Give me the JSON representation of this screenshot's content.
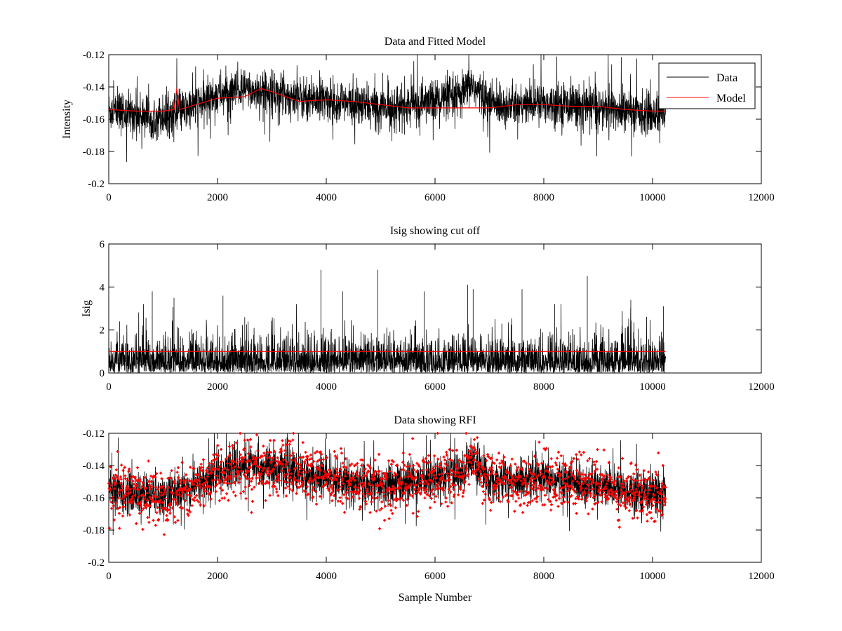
{
  "colors": {
    "data": "#000000",
    "model": "#ff0000",
    "cutoff": "#ff0000",
    "rfi": "#ff0000"
  },
  "chart_data": [
    {
      "type": "line",
      "title": "Data and Fitted Model",
      "xlabel": "",
      "ylabel": "Intensity",
      "xlim": [
        0,
        12000
      ],
      "ylim": [
        -0.2,
        -0.12
      ],
      "xticks": [
        0,
        2000,
        4000,
        6000,
        8000,
        10000,
        12000
      ],
      "yticks": [
        -0.2,
        -0.18,
        -0.16,
        -0.14,
        -0.12
      ],
      "xtick_labels": [
        "0",
        "2000",
        "4000",
        "6000",
        "8000",
        "10000",
        "12000"
      ],
      "ytick_labels": [
        "-0.2",
        "-0.18",
        "-0.16",
        "-0.14",
        "-0.12"
      ],
      "legend": {
        "position": "top-right",
        "entries": [
          "Data",
          "Model"
        ]
      },
      "series": [
        {
          "name": "Data",
          "color": "#000000",
          "style": "noisy-line",
          "x": [
            0,
            500,
            1000,
            1250,
            1500,
            2000,
            2500,
            3000,
            3500,
            4000,
            4500,
            5000,
            5500,
            6000,
            6500,
            6650,
            7000,
            7500,
            8000,
            8500,
            9000,
            9500,
            10000,
            10240
          ],
          "y": [
            -0.155,
            -0.157,
            -0.158,
            -0.157,
            -0.153,
            -0.145,
            -0.142,
            -0.143,
            -0.147,
            -0.148,
            -0.151,
            -0.153,
            -0.152,
            -0.148,
            -0.146,
            -0.138,
            -0.15,
            -0.152,
            -0.15,
            -0.151,
            -0.153,
            -0.155,
            -0.157,
            -0.156
          ]
        },
        {
          "name": "Model",
          "color": "#ff0000",
          "style": "line",
          "x": [
            0,
            500,
            1000,
            1200,
            1250,
            1300,
            1500,
            2000,
            2500,
            2800,
            3000,
            3500,
            4000,
            4500,
            5000,
            5500,
            6000,
            7000,
            7500,
            8000,
            8500,
            9000,
            9500,
            10000,
            10240
          ],
          "y": [
            -0.154,
            -0.155,
            -0.155,
            -0.154,
            -0.141,
            -0.154,
            -0.152,
            -0.147,
            -0.146,
            -0.141,
            -0.143,
            -0.149,
            -0.148,
            -0.149,
            -0.151,
            -0.153,
            -0.153,
            -0.153,
            -0.151,
            -0.151,
            -0.152,
            -0.152,
            -0.154,
            -0.155,
            -0.155
          ]
        }
      ]
    },
    {
      "type": "line",
      "title": "Isig showing cut off",
      "xlabel": "",
      "ylabel": "Isig",
      "xlim": [
        0,
        12000
      ],
      "ylim": [
        0,
        6
      ],
      "xticks": [
        0,
        2000,
        4000,
        6000,
        8000,
        10000,
        12000
      ],
      "yticks": [
        0,
        2,
        4,
        6
      ],
      "xtick_labels": [
        "0",
        "2000",
        "4000",
        "6000",
        "8000",
        "10000",
        "12000"
      ],
      "ytick_labels": [
        "0",
        "2",
        "4",
        "6"
      ],
      "series": [
        {
          "name": "Isig",
          "color": "#000000",
          "style": "spikes",
          "x": [
            0,
            10240
          ],
          "y_typical": 0.8,
          "peaks_x": [
            200,
            800,
            1200,
            2100,
            2500,
            3900,
            4300,
            4950,
            5800,
            6600,
            6700,
            7600,
            8200,
            8800,
            9600,
            10200
          ],
          "peaks_y": [
            2.4,
            3.8,
            3.5,
            3.6,
            2.6,
            4.8,
            3.8,
            4.8,
            3.8,
            4.1,
            3.9,
            3.9,
            3.2,
            4.5,
            3.4,
            3.1
          ]
        },
        {
          "name": "Cut off",
          "color": "#ff0000",
          "style": "line",
          "x": [
            0,
            10240
          ],
          "y": [
            1.0,
            1.0
          ]
        }
      ]
    },
    {
      "type": "line",
      "title": "Data showing RFI",
      "xlabel": "Sample Number",
      "ylabel": "",
      "xlim": [
        0,
        12000
      ],
      "ylim": [
        -0.2,
        -0.12
      ],
      "xticks": [
        0,
        2000,
        4000,
        6000,
        8000,
        10000,
        12000
      ],
      "yticks": [
        -0.2,
        -0.18,
        -0.16,
        -0.14,
        -0.12
      ],
      "xtick_labels": [
        "0",
        "2000",
        "4000",
        "6000",
        "8000",
        "10000",
        "12000"
      ],
      "ytick_labels": [
        "-0.2",
        "-0.18",
        "-0.16",
        "-0.14",
        "-0.12"
      ],
      "series": [
        {
          "name": "Data",
          "color": "#000000",
          "style": "noisy-line",
          "x": [
            0,
            500,
            1000,
            1500,
            2000,
            2500,
            3000,
            3500,
            4000,
            4500,
            5000,
            5500,
            6000,
            6500,
            6650,
            7000,
            7500,
            8000,
            8500,
            9000,
            9500,
            10000,
            10240
          ],
          "y": [
            -0.155,
            -0.158,
            -0.159,
            -0.154,
            -0.145,
            -0.14,
            -0.141,
            -0.145,
            -0.148,
            -0.151,
            -0.153,
            -0.151,
            -0.147,
            -0.145,
            -0.135,
            -0.148,
            -0.15,
            -0.149,
            -0.15,
            -0.153,
            -0.155,
            -0.157,
            -0.156
          ]
        },
        {
          "name": "RFI",
          "color": "#ff0000",
          "style": "markers",
          "x": [
            0,
            500,
            1000,
            1500,
            2000,
            2500,
            3000,
            3500,
            4000,
            4500,
            5000,
            5500,
            6000,
            6500,
            6650,
            7000,
            7500,
            8000,
            8500,
            9000,
            9500,
            10000,
            10240
          ],
          "y": [
            -0.155,
            -0.158,
            -0.159,
            -0.154,
            -0.145,
            -0.14,
            -0.141,
            -0.145,
            -0.148,
            -0.151,
            -0.153,
            -0.151,
            -0.147,
            -0.145,
            -0.135,
            -0.148,
            -0.15,
            -0.149,
            -0.15,
            -0.153,
            -0.155,
            -0.157,
            -0.156
          ]
        }
      ]
    }
  ]
}
